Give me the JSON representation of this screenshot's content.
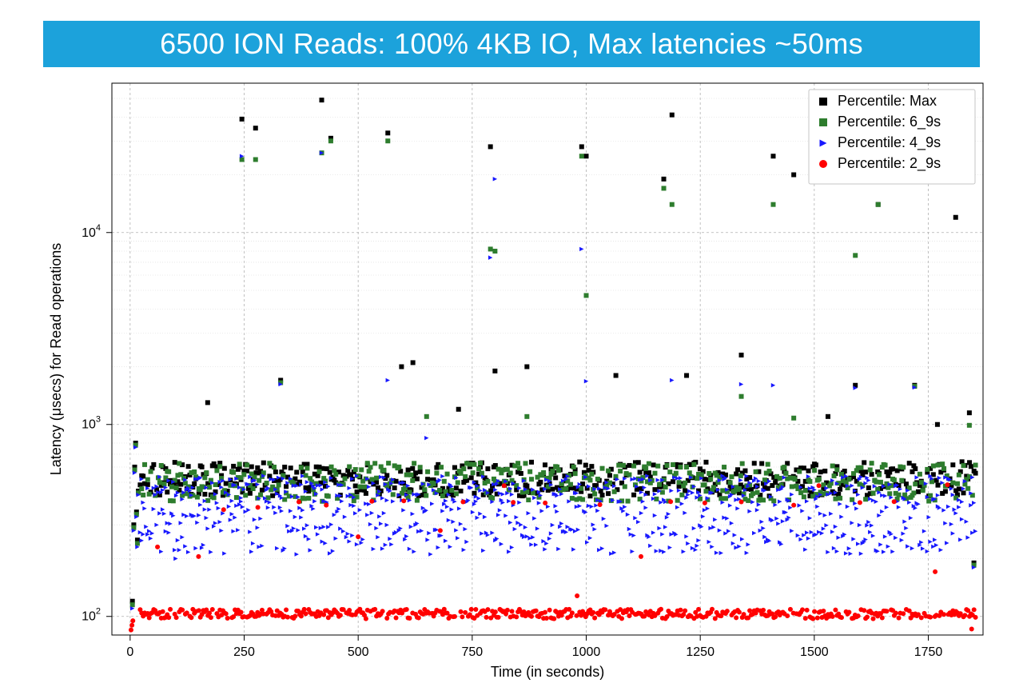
{
  "header": {
    "title": "6500 ION Reads: 100% 4KB IO, Max latencies ~50ms"
  },
  "chart": {
    "type": "scatter",
    "background_color": "#ffffff",
    "plot_border_color": "#000000",
    "grid_major_color": "#b0b0b0",
    "grid_minor_color": "#d8d8d8",
    "x": {
      "label": "Time (in seconds)",
      "scale": "linear",
      "lim": [
        -40,
        1870
      ],
      "ticks": [
        0,
        250,
        500,
        750,
        1000,
        1250,
        1500,
        1750
      ],
      "label_fontsize": 18,
      "tick_fontsize": 16
    },
    "y": {
      "label": "Latency (μsecs) for Read operations",
      "scale": "log",
      "lim": [
        80,
        60000
      ],
      "major_ticks": [
        100,
        1000,
        10000
      ],
      "major_tick_labels": [
        "10²",
        "10³",
        "10⁴"
      ],
      "label_fontsize": 18,
      "tick_fontsize": 16
    },
    "legend": {
      "position": "upper-right",
      "bg": "#ffffff",
      "border": "#c5c5c5",
      "fontsize": 18,
      "items": [
        {
          "label": "Percentile: Max",
          "color": "#000000",
          "marker": "square"
        },
        {
          "label": "Percentile: 6_9s",
          "color": "#2e7d2e",
          "marker": "square"
        },
        {
          "label": "Percentile: 4_9s",
          "color": "#1818ff",
          "marker": "triangle-right"
        },
        {
          "label": "Percentile: 2_9s",
          "color": "#ff0000",
          "marker": "circle"
        }
      ]
    },
    "series": [
      {
        "name": "max",
        "color": "#000000",
        "marker": "square",
        "size": 6,
        "band": {
          "base": 520,
          "jitter": 0.18
        },
        "startup": [
          [
            5,
            120
          ],
          [
            8,
            300
          ],
          [
            10,
            600
          ],
          [
            12,
            800
          ],
          [
            14,
            350
          ],
          [
            16,
            250
          ],
          [
            18,
            450
          ]
        ],
        "spikes": [
          [
            170,
            1300
          ],
          [
            245,
            39000
          ],
          [
            275,
            35000
          ],
          [
            330,
            1700
          ],
          [
            420,
            49000
          ],
          [
            440,
            31000
          ],
          [
            565,
            33000
          ],
          [
            595,
            2000
          ],
          [
            620,
            2100
          ],
          [
            720,
            1200
          ],
          [
            790,
            28000
          ],
          [
            800,
            1900
          ],
          [
            870,
            2000
          ],
          [
            990,
            28000
          ],
          [
            1000,
            25000
          ],
          [
            1065,
            1800
          ],
          [
            1170,
            19000
          ],
          [
            1188,
            41000
          ],
          [
            1220,
            1800
          ],
          [
            1340,
            2300
          ],
          [
            1410,
            25000
          ],
          [
            1455,
            20000
          ],
          [
            1530,
            1100
          ],
          [
            1590,
            1600
          ],
          [
            1640,
            14000
          ],
          [
            1720,
            1600
          ],
          [
            1770,
            1000
          ],
          [
            1810,
            12000
          ],
          [
            1840,
            1150
          ],
          [
            1850,
            190
          ]
        ]
      },
      {
        "name": "6_9s",
        "color": "#2e7d2e",
        "marker": "square",
        "size": 6,
        "band": {
          "base": 500,
          "jitter": 0.2
        },
        "startup": [
          [
            5,
            115
          ],
          [
            8,
            290
          ],
          [
            10,
            580
          ],
          [
            12,
            780
          ],
          [
            14,
            340
          ],
          [
            16,
            240
          ],
          [
            18,
            440
          ]
        ],
        "spikes": [
          [
            245,
            24000
          ],
          [
            275,
            24000
          ],
          [
            330,
            1650
          ],
          [
            420,
            26000
          ],
          [
            440,
            30000
          ],
          [
            565,
            30000
          ],
          [
            650,
            1100
          ],
          [
            790,
            8200
          ],
          [
            800,
            8000
          ],
          [
            870,
            1100
          ],
          [
            990,
            25000
          ],
          [
            1000,
            4700
          ],
          [
            1170,
            17000
          ],
          [
            1188,
            14000
          ],
          [
            1340,
            1400
          ],
          [
            1410,
            14000
          ],
          [
            1455,
            1080
          ],
          [
            1590,
            7600
          ],
          [
            1640,
            14000
          ],
          [
            1720,
            1580
          ],
          [
            1840,
            990
          ],
          [
            1850,
            185
          ]
        ]
      },
      {
        "name": "4_9s",
        "color": "#1818ff",
        "marker": "triangle-right",
        "size": 6,
        "band": {
          "base": 290,
          "jitter": 0.28
        },
        "band2": {
          "base": 460,
          "jitter": 0.14,
          "density": 0.6
        },
        "startup": [
          [
            5,
            110
          ],
          [
            8,
            280
          ],
          [
            10,
            560
          ],
          [
            12,
            760
          ],
          [
            14,
            330
          ],
          [
            16,
            230
          ],
          [
            18,
            430
          ]
        ],
        "spikes": [
          [
            100,
            200
          ],
          [
            245,
            25000
          ],
          [
            330,
            1620
          ],
          [
            420,
            26000
          ],
          [
            565,
            1700
          ],
          [
            650,
            850
          ],
          [
            790,
            7400
          ],
          [
            800,
            19000
          ],
          [
            990,
            8200
          ],
          [
            1000,
            1680
          ],
          [
            1188,
            1700
          ],
          [
            1340,
            1620
          ],
          [
            1410,
            1600
          ],
          [
            1590,
            1550
          ],
          [
            1720,
            1560
          ],
          [
            1850,
            180
          ]
        ]
      },
      {
        "name": "2_9s",
        "color": "#ff0000",
        "marker": "circle",
        "size": 6,
        "band": {
          "base": 103,
          "jitter": 0.05
        },
        "startup": [
          [
            2,
            85
          ],
          [
            4,
            90
          ],
          [
            6,
            95
          ]
        ],
        "spikes": [
          [
            60,
            230
          ],
          [
            150,
            205
          ],
          [
            205,
            360
          ],
          [
            280,
            370
          ],
          [
            370,
            395
          ],
          [
            430,
            380
          ],
          [
            500,
            260
          ],
          [
            530,
            398
          ],
          [
            600,
            400
          ],
          [
            680,
            280
          ],
          [
            730,
            395
          ],
          [
            820,
            480
          ],
          [
            840,
            393
          ],
          [
            910,
            390
          ],
          [
            980,
            128
          ],
          [
            1030,
            382
          ],
          [
            1120,
            205
          ],
          [
            1185,
            396
          ],
          [
            1260,
            390
          ],
          [
            1340,
            395
          ],
          [
            1455,
            380
          ],
          [
            1510,
            480
          ],
          [
            1600,
            392
          ],
          [
            1675,
            396
          ],
          [
            1765,
            171
          ],
          [
            1792,
            485
          ],
          [
            1845,
            86
          ]
        ]
      }
    ]
  }
}
